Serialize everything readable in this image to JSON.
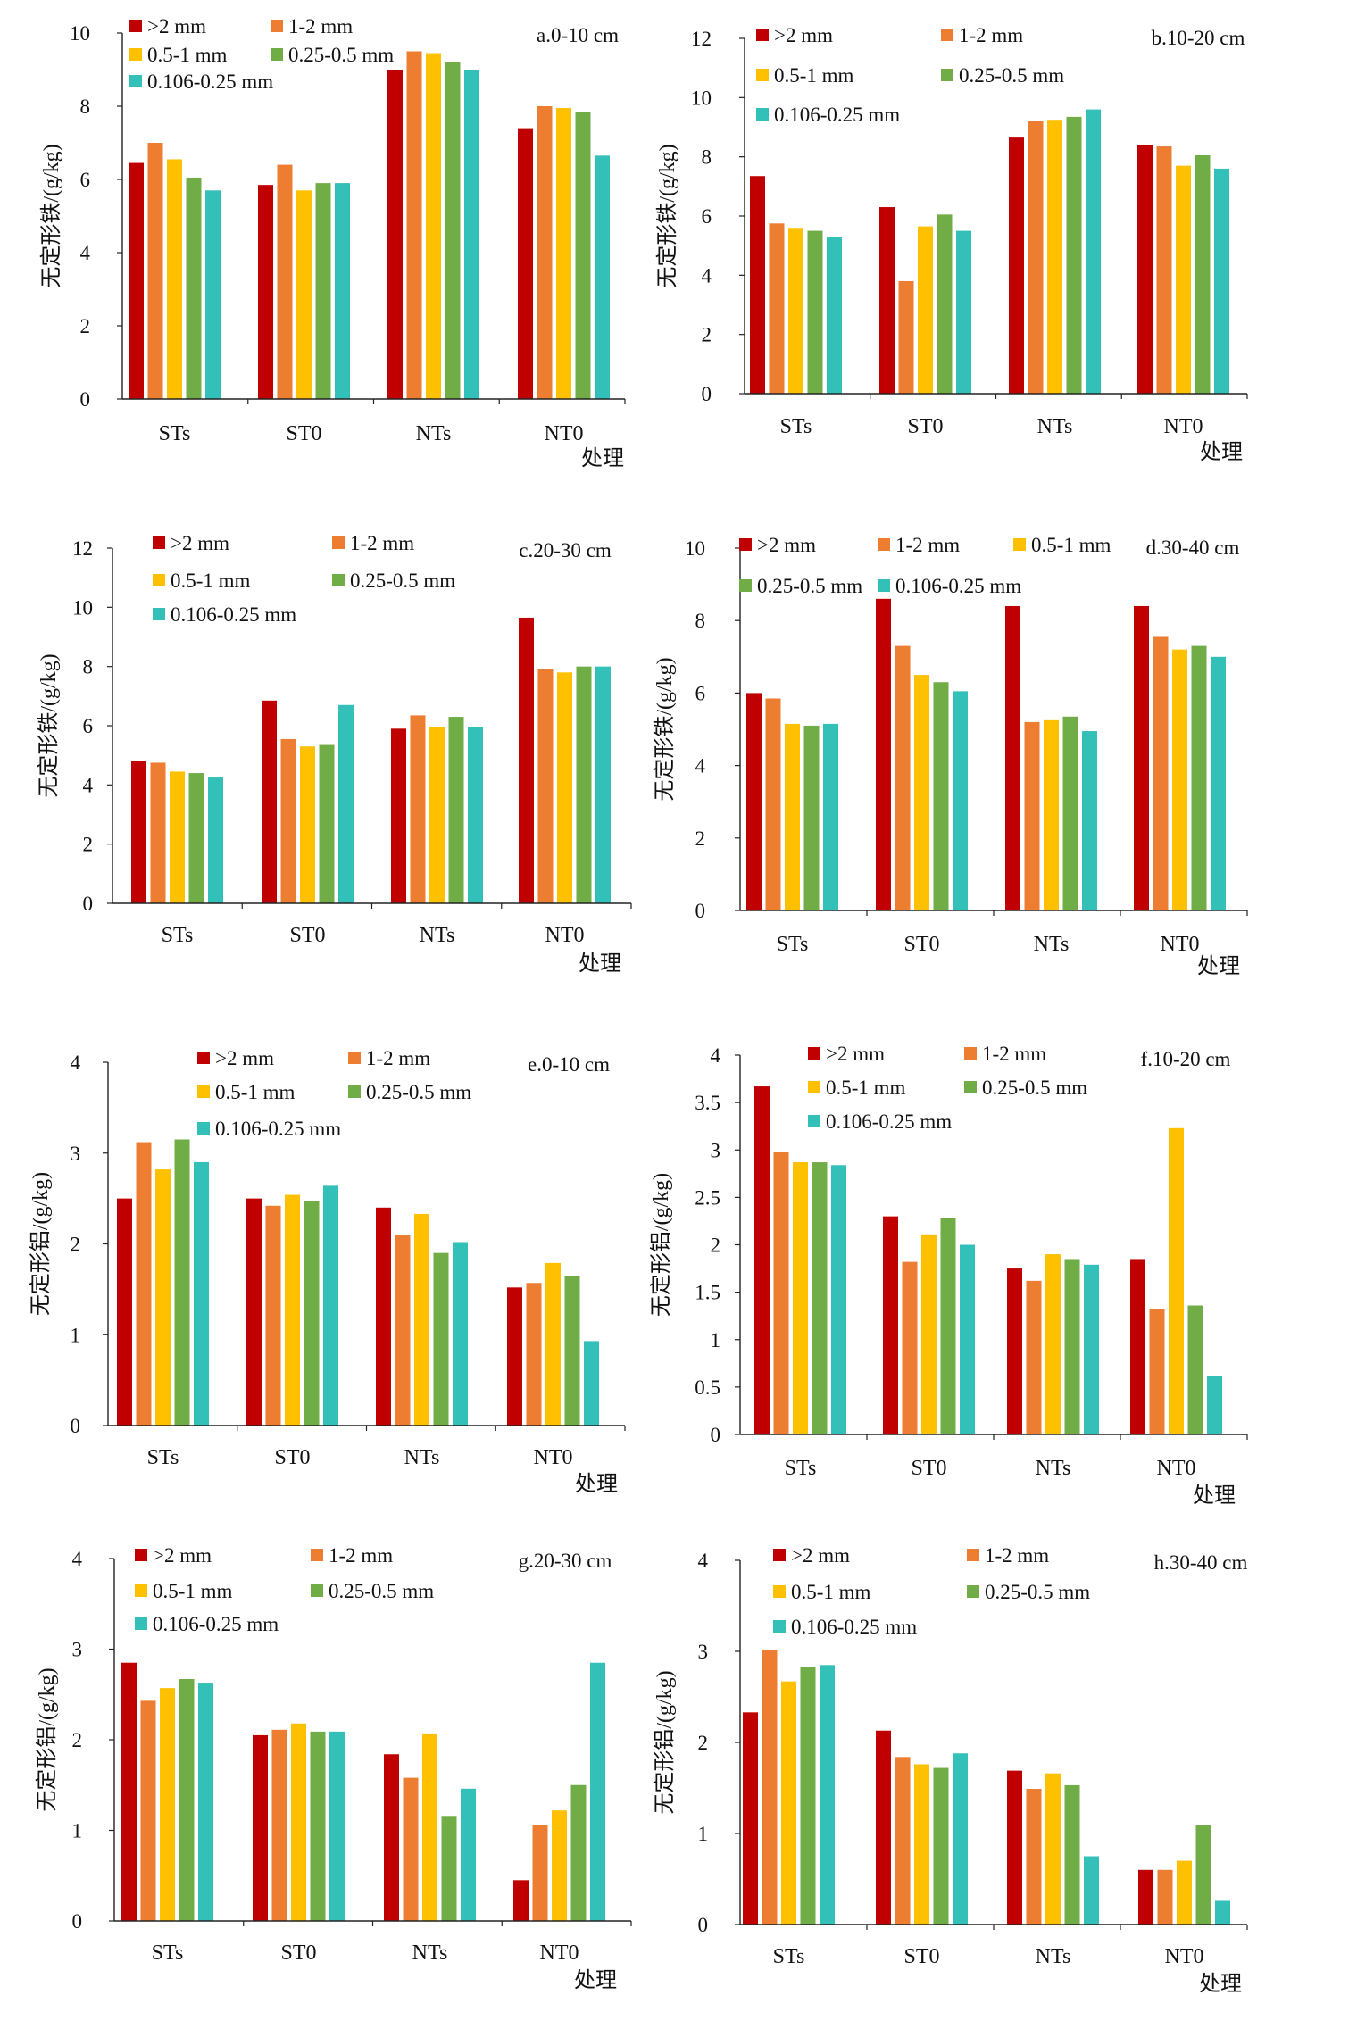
{
  "colors": {
    "c1": "#c00000",
    "c2": "#ed7d31",
    "c3": "#ffc000",
    "c4": "#70ad47",
    "c5": "#33c0b8"
  },
  "chart_data": [
    {
      "type": "bar",
      "panel_label": "a.0-10 cm",
      "ylabel": "无定形铁/(g/kg)",
      "xlabel": "处理",
      "categories": [
        "STs",
        "ST0",
        "NTs",
        "NT0"
      ],
      "ylim": [
        0,
        10
      ],
      "yticks": [
        "0",
        "2",
        "4",
        "6",
        "8",
        "10"
      ],
      "series": [
        {
          "name": ">2 mm",
          "color": "#c00000",
          "values": [
            6.45,
            5.85,
            9.0,
            7.4
          ]
        },
        {
          "name": "1-2 mm",
          "color": "#ed7d31",
          "values": [
            7.0,
            6.4,
            9.5,
            8.0
          ]
        },
        {
          "name": "0.5-1 mm",
          "color": "#ffc000",
          "values": [
            6.55,
            5.7,
            9.45,
            7.95
          ]
        },
        {
          "name": "0.25-0.5 mm",
          "color": "#70ad47",
          "values": [
            6.05,
            5.9,
            9.2,
            7.85
          ]
        },
        {
          "name": "0.106-0.25 mm",
          "color": "#33c0b8",
          "values": [
            5.7,
            5.9,
            9.0,
            6.65
          ]
        }
      ]
    },
    {
      "type": "bar",
      "panel_label": "b.10-20 cm",
      "ylabel": "无定形铁/(g/kg)",
      "xlabel": "处理",
      "categories": [
        "STs",
        "ST0",
        "NTs",
        "NT0"
      ],
      "ylim": [
        0,
        12
      ],
      "yticks": [
        "0",
        "2",
        "4",
        "6",
        "8",
        "10",
        "12"
      ],
      "series": [
        {
          "name": ">2 mm",
          "color": "#c00000",
          "values": [
            7.35,
            6.3,
            8.65,
            8.4
          ]
        },
        {
          "name": "1-2 mm",
          "color": "#ed7d31",
          "values": [
            5.75,
            3.8,
            9.2,
            8.35
          ]
        },
        {
          "name": "0.5-1 mm",
          "color": "#ffc000",
          "values": [
            5.6,
            5.65,
            9.25,
            7.7
          ]
        },
        {
          "name": "0.25-0.5 mm",
          "color": "#70ad47",
          "values": [
            5.5,
            6.05,
            9.35,
            8.05
          ]
        },
        {
          "name": "0.106-0.25 mm",
          "color": "#33c0b8",
          "values": [
            5.3,
            5.5,
            9.6,
            7.6
          ]
        }
      ]
    },
    {
      "type": "bar",
      "panel_label": "c.20-30 cm",
      "ylabel": "无定形铁/(g/kg)",
      "xlabel": "处理",
      "categories": [
        "STs",
        "ST0",
        "NTs",
        "NT0"
      ],
      "ylim": [
        0,
        12
      ],
      "yticks": [
        "0",
        "2",
        "4",
        "6",
        "8",
        "10",
        "12"
      ],
      "series": [
        {
          "name": ">2 mm",
          "color": "#c00000",
          "values": [
            4.8,
            6.85,
            5.9,
            9.65
          ]
        },
        {
          "name": "1-2 mm",
          "color": "#ed7d31",
          "values": [
            4.75,
            5.55,
            6.35,
            7.9
          ]
        },
        {
          "name": "0.5-1 mm",
          "color": "#ffc000",
          "values": [
            4.45,
            5.3,
            5.95,
            7.8
          ]
        },
        {
          "name": "0.25-0.5 mm",
          "color": "#70ad47",
          "values": [
            4.4,
            5.35,
            6.3,
            8.0
          ]
        },
        {
          "name": "0.106-0.25 mm",
          "color": "#33c0b8",
          "values": [
            4.25,
            6.7,
            5.95,
            8.0
          ]
        }
      ]
    },
    {
      "type": "bar",
      "panel_label": "d.30-40 cm",
      "ylabel": "无定形铁/(g/kg)",
      "xlabel": "处理",
      "categories": [
        "STs",
        "ST0",
        "NTs",
        "NT0"
      ],
      "ylim": [
        0,
        10
      ],
      "yticks": [
        "0",
        "2",
        "4",
        "6",
        "8",
        "10"
      ],
      "series": [
        {
          "name": ">2 mm",
          "color": "#c00000",
          "values": [
            6.0,
            8.6,
            8.4,
            8.4
          ]
        },
        {
          "name": "1-2 mm",
          "color": "#ed7d31",
          "values": [
            5.85,
            7.3,
            5.2,
            7.55
          ]
        },
        {
          "name": "0.5-1 mm",
          "color": "#ffc000",
          "values": [
            5.15,
            6.5,
            5.25,
            7.2
          ]
        },
        {
          "name": "0.25-0.5 mm",
          "color": "#70ad47",
          "values": [
            5.1,
            6.3,
            5.35,
            7.3
          ]
        },
        {
          "name": "0.106-0.25 mm",
          "color": "#33c0b8",
          "values": [
            5.15,
            6.05,
            4.95,
            7.0
          ]
        }
      ]
    },
    {
      "type": "bar",
      "panel_label": "e.0-10 cm",
      "ylabel": "无定形铝/(g/kg)",
      "xlabel": "处理",
      "categories": [
        "STs",
        "ST0",
        "NTs",
        "NT0"
      ],
      "ylim": [
        0,
        4
      ],
      "yticks": [
        "0",
        "1",
        "2",
        "3",
        "4"
      ],
      "series": [
        {
          "name": ">2 mm",
          "color": "#c00000",
          "values": [
            2.5,
            2.5,
            2.4,
            1.52
          ]
        },
        {
          "name": "1-2 mm",
          "color": "#ed7d31",
          "values": [
            3.12,
            2.42,
            2.1,
            1.57
          ]
        },
        {
          "name": "0.5-1 mm",
          "color": "#ffc000",
          "values": [
            2.82,
            2.54,
            2.33,
            1.79
          ]
        },
        {
          "name": "0.25-0.5 mm",
          "color": "#70ad47",
          "values": [
            3.15,
            2.47,
            1.9,
            1.65
          ]
        },
        {
          "name": "0.106-0.25 mm",
          "color": "#33c0b8",
          "values": [
            2.9,
            2.64,
            2.02,
            0.93
          ]
        }
      ]
    },
    {
      "type": "bar",
      "panel_label": "f.10-20 cm",
      "ylabel": "无定形铝/(g/kg)",
      "xlabel": "处理",
      "categories": [
        "STs",
        "ST0",
        "NTs",
        "NT0"
      ],
      "ylim": [
        0,
        4
      ],
      "yticks": [
        "0",
        "0.5",
        "1",
        "1.5",
        "2",
        "2.5",
        "3",
        "3.5",
        "4"
      ],
      "series": [
        {
          "name": ">2 mm",
          "color": "#c00000",
          "values": [
            3.67,
            2.3,
            1.75,
            1.85
          ]
        },
        {
          "name": "1-2 mm",
          "color": "#ed7d31",
          "values": [
            2.98,
            1.82,
            1.62,
            1.32
          ]
        },
        {
          "name": "0.5-1 mm",
          "color": "#ffc000",
          "values": [
            2.87,
            2.11,
            1.9,
            3.23
          ]
        },
        {
          "name": "0.25-0.5 mm",
          "color": "#70ad47",
          "values": [
            2.87,
            2.28,
            1.85,
            1.36
          ]
        },
        {
          "name": "0.106-0.25 mm",
          "color": "#33c0b8",
          "values": [
            2.84,
            2.0,
            1.79,
            0.62
          ]
        }
      ]
    },
    {
      "type": "bar",
      "panel_label": "g.20-30 cm",
      "ylabel": "无定形铝/(g/kg)",
      "xlabel": "处理",
      "categories": [
        "STs",
        "ST0",
        "NTs",
        "NT0"
      ],
      "ylim": [
        0,
        4
      ],
      "yticks": [
        "0",
        "1",
        "2",
        "3",
        "4"
      ],
      "series": [
        {
          "name": ">2 mm",
          "color": "#c00000",
          "values": [
            2.85,
            2.05,
            1.84,
            0.45
          ]
        },
        {
          "name": "1-2 mm",
          "color": "#ed7d31",
          "values": [
            2.43,
            2.11,
            1.58,
            1.06
          ]
        },
        {
          "name": "0.5-1 mm",
          "color": "#ffc000",
          "values": [
            2.57,
            2.18,
            2.07,
            1.22
          ]
        },
        {
          "name": "0.25-0.5 mm",
          "color": "#70ad47",
          "values": [
            2.67,
            2.09,
            1.16,
            1.5
          ]
        },
        {
          "name": "0.106-0.25 mm",
          "color": "#33c0b8",
          "values": [
            2.63,
            2.09,
            1.46,
            2.85
          ]
        }
      ]
    },
    {
      "type": "bar",
      "panel_label": "h.30-40 cm",
      "ylabel": "无定形铝/(g/kg)",
      "xlabel": "处理",
      "categories": [
        "STs",
        "ST0",
        "NTs",
        "NT0"
      ],
      "ylim": [
        0,
        4
      ],
      "yticks": [
        "0",
        "1",
        "2",
        "3",
        "4"
      ],
      "series": [
        {
          "name": ">2 mm",
          "color": "#c00000",
          "values": [
            2.33,
            2.13,
            1.69,
            0.6
          ]
        },
        {
          "name": "1-2 mm",
          "color": "#ed7d31",
          "values": [
            3.02,
            1.84,
            1.49,
            0.6
          ]
        },
        {
          "name": "0.5-1 mm",
          "color": "#ffc000",
          "values": [
            2.67,
            1.76,
            1.66,
            0.7
          ]
        },
        {
          "name": "0.25-0.5 mm",
          "color": "#70ad47",
          "values": [
            2.83,
            1.72,
            1.53,
            1.09
          ]
        },
        {
          "name": "0.106-0.25 mm",
          "color": "#33c0b8",
          "values": [
            2.85,
            1.88,
            0.75,
            0.26
          ]
        }
      ]
    }
  ]
}
